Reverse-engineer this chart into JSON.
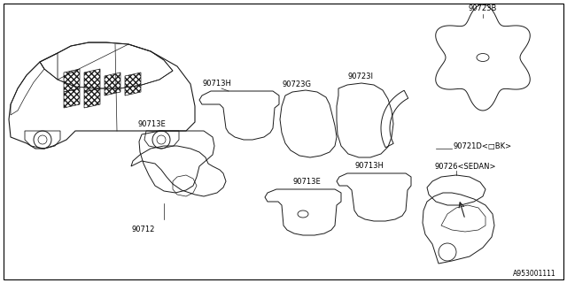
{
  "bg_color": "#ffffff",
  "border_color": "#000000",
  "line_color": "#1a1a1a",
  "text_color": "#000000",
  "font_size": 6.0,
  "diagram_id": "A953001111",
  "label_90723B": "90723B",
  "label_90723I": "90723I",
  "label_90723G": "90723G",
  "label_90721D": "90721D<□BK>",
  "label_90713H_top": "90713H",
  "label_90713E_top": "90713E",
  "label_90712": "90712",
  "label_90713H_bot": "90713H",
  "label_90713E_bot": "90713E",
  "label_90726": "90726<SEDAN>"
}
